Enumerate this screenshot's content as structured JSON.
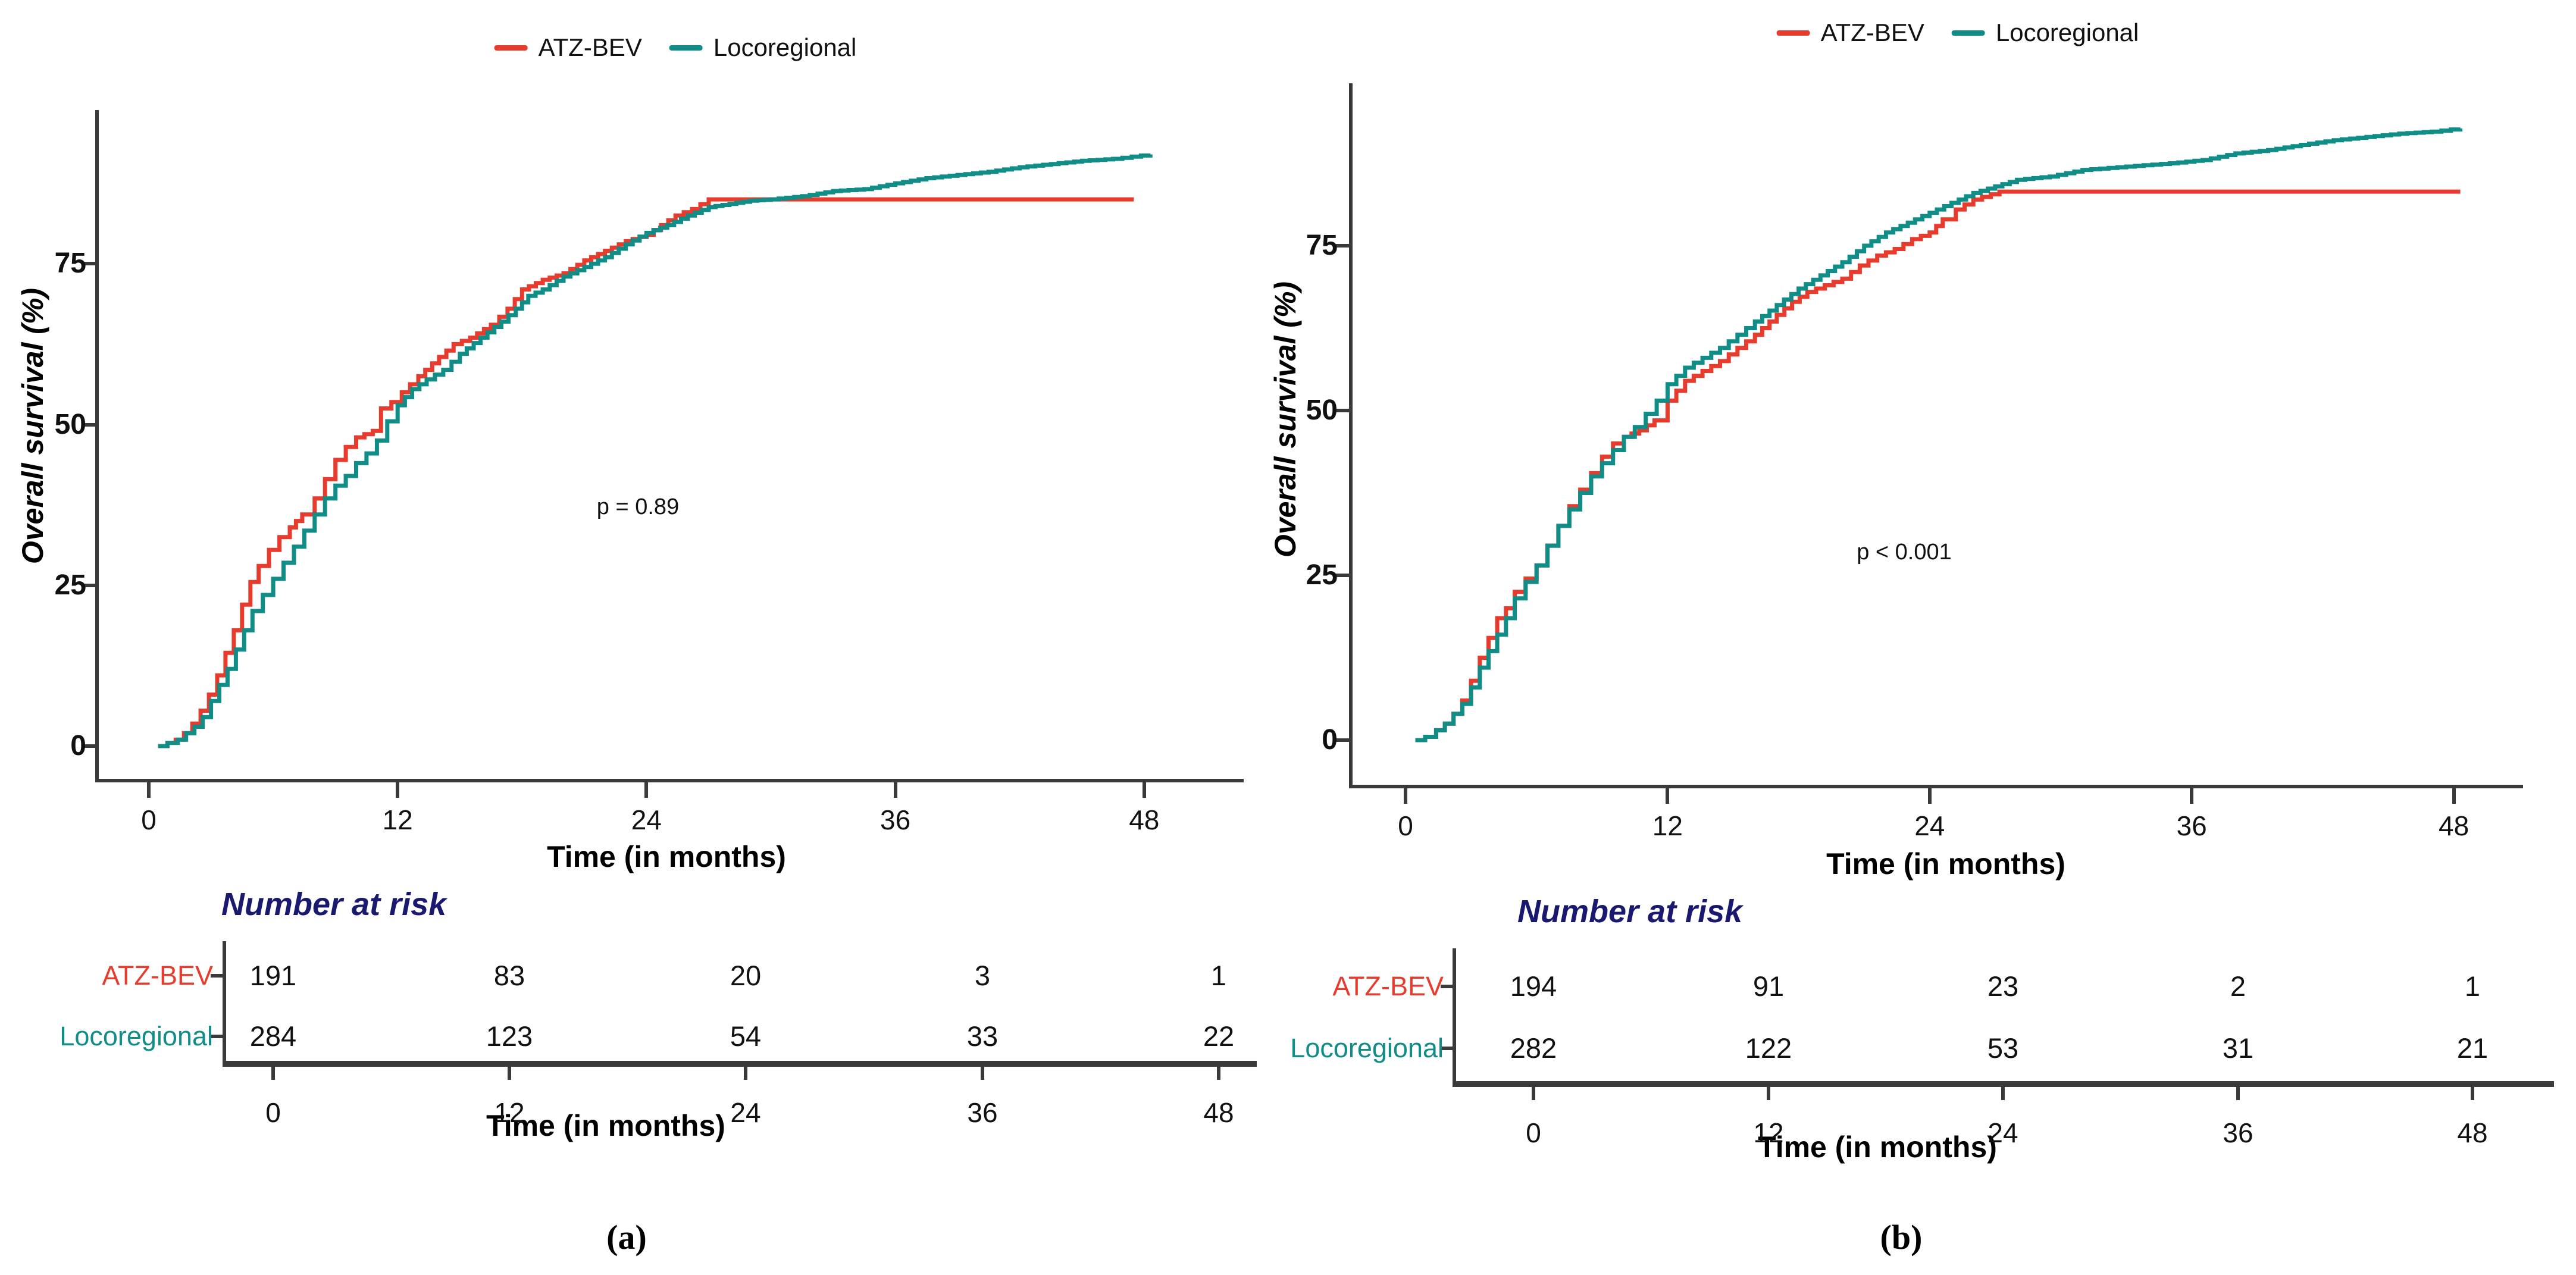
{
  "figure": {
    "panels": [
      {
        "caption": "(a)",
        "legend": [
          {
            "label": "ATZ-BEV",
            "color": "#e73b2e"
          },
          {
            "label": "Locoregional",
            "color": "#108d87"
          }
        ],
        "y_axis": {
          "label": "Overall survival (%)",
          "ticks": [
            "0",
            "25",
            "50",
            "75"
          ]
        },
        "x_axis": {
          "label": "Time (in months)",
          "ticks": [
            "0",
            "12",
            "24",
            "36",
            "48"
          ]
        },
        "p_value": "p = 0.89",
        "risk_table": {
          "title": "Number at risk",
          "title_color": "#191970",
          "x_label": "Time (in months)",
          "time_ticks": [
            "0",
            "12",
            "24",
            "36",
            "48"
          ],
          "rows": [
            {
              "label": "ATZ-BEV",
              "color": "#e73b2e",
              "counts": [
                "191",
                "83",
                "20",
                "3",
                "1"
              ]
            },
            {
              "label": "Locoregional",
              "color": "#108d87",
              "counts": [
                "284",
                "123",
                "54",
                "33",
                "22"
              ]
            }
          ]
        }
      },
      {
        "caption": "(b)",
        "legend": [
          {
            "label": "ATZ-BEV",
            "color": "#e73b2e"
          },
          {
            "label": "Locoregional",
            "color": "#108d87"
          }
        ],
        "y_axis": {
          "label": "Overall survival (%)",
          "ticks": [
            "0",
            "25",
            "50",
            "75"
          ]
        },
        "x_axis": {
          "label": "Time (in months)",
          "ticks": [
            "0",
            "12",
            "24",
            "36",
            "48"
          ]
        },
        "p_value": "p < 0.001",
        "risk_table": {
          "title": "Number at risk",
          "title_color": "#191970",
          "x_label": "Time (in months)",
          "time_ticks": [
            "0",
            "12",
            "24",
            "36",
            "48"
          ],
          "rows": [
            {
              "label": "ATZ-BEV",
              "color": "#e73b2e",
              "counts": [
                "194",
                "91",
                "23",
                "2",
                "1"
              ]
            },
            {
              "label": "Locoregional",
              "color": "#108d87",
              "counts": [
                "282",
                "122",
                "53",
                "31",
                "21"
              ]
            }
          ]
        }
      }
    ]
  },
  "chart_data": [
    {
      "type": "line",
      "panel": "a",
      "step": true,
      "xlabel": "Time (in months)",
      "ylabel": "Overall survival (%)",
      "xlim": [
        0,
        50
      ],
      "ylim": [
        0,
        100
      ],
      "x_ticks": [
        0,
        12,
        24,
        36,
        48
      ],
      "y_ticks": [
        0,
        25,
        50,
        75
      ],
      "grid": false,
      "legend_position": "top-center",
      "annotation": {
        "text": "p = 0.89",
        "x": 23.6,
        "y": 37
      },
      "number_at_risk": {
        "times": [
          0,
          12,
          24,
          36,
          48
        ],
        "ATZ-BEV": [
          191,
          83,
          20,
          3,
          1
        ],
        "Locoregional": [
          284,
          123,
          54,
          33,
          22
        ]
      },
      "series": [
        {
          "name": "ATZ-BEV",
          "color": "#e73b2e",
          "points": [
            [
              0.45,
              0
            ],
            [
              0.9,
              0.5
            ],
            [
              1.3,
              1
            ],
            [
              1.7,
              2
            ],
            [
              2.1,
              3.5
            ],
            [
              2.5,
              5.5
            ],
            [
              2.9,
              8
            ],
            [
              3.3,
              11
            ],
            [
              3.7,
              14.5
            ],
            [
              4.1,
              18
            ],
            [
              4.5,
              22
            ],
            [
              4.9,
              25.5
            ],
            [
              5.3,
              28
            ],
            [
              5.8,
              30.5
            ],
            [
              6.3,
              32.5
            ],
            [
              6.8,
              34
            ],
            [
              7.4,
              36
            ],
            [
              8,
              38.5
            ],
            [
              8.5,
              41.5
            ],
            [
              9,
              44.5
            ],
            [
              9.5,
              46.5
            ],
            [
              10,
              48
            ],
            [
              10.8,
              49
            ],
            [
              11.2,
              52.5
            ],
            [
              11.7,
              53.5
            ],
            [
              12.2,
              55
            ],
            [
              13,
              57.5
            ],
            [
              14,
              60.5
            ],
            [
              14.7,
              62.5
            ],
            [
              15.5,
              63.5
            ],
            [
              16.5,
              65.5
            ],
            [
              17.3,
              68
            ],
            [
              18,
              71
            ],
            [
              19,
              72.5
            ],
            [
              20,
              73.5
            ],
            [
              21,
              75.5
            ],
            [
              22,
              77
            ],
            [
              23,
              78.5
            ],
            [
              24,
              79.5
            ],
            [
              24.7,
              81
            ],
            [
              25.4,
              82.5
            ],
            [
              26.2,
              83.5
            ],
            [
              27,
              85
            ],
            [
              47.5,
              85
            ]
          ]
        },
        {
          "name": "Locoregional",
          "color": "#108d87",
          "points": [
            [
              0.45,
              0
            ],
            [
              0.9,
              0.5
            ],
            [
              1.4,
              1
            ],
            [
              1.8,
              2
            ],
            [
              2.2,
              3
            ],
            [
              2.6,
              4.5
            ],
            [
              3,
              7
            ],
            [
              3.4,
              9.5
            ],
            [
              3.8,
              12
            ],
            [
              4.2,
              15
            ],
            [
              4.6,
              18
            ],
            [
              5,
              21
            ],
            [
              5.5,
              23.5
            ],
            [
              6,
              26
            ],
            [
              6.5,
              28.5
            ],
            [
              7,
              31
            ],
            [
              7.5,
              33.5
            ],
            [
              8,
              36
            ],
            [
              8.5,
              38.5
            ],
            [
              9,
              40.5
            ],
            [
              9.5,
              42
            ],
            [
              10,
              44
            ],
            [
              10.5,
              45.5
            ],
            [
              11,
              47.5
            ],
            [
              11.5,
              50.5
            ],
            [
              12,
              53
            ],
            [
              12.7,
              55.5
            ],
            [
              13.4,
              57
            ],
            [
              14.2,
              58.5
            ],
            [
              15,
              61
            ],
            [
              16,
              63.5
            ],
            [
              17,
              66
            ],
            [
              17.7,
              68
            ],
            [
              18.3,
              70
            ],
            [
              19,
              71
            ],
            [
              20,
              73
            ],
            [
              21,
              74.5
            ],
            [
              22,
              76
            ],
            [
              23,
              78
            ],
            [
              24,
              79.8
            ],
            [
              25,
              81
            ],
            [
              26,
              82.5
            ],
            [
              27,
              83.8
            ],
            [
              28,
              84.3
            ],
            [
              29,
              84.8
            ],
            [
              30,
              85
            ],
            [
              31.5,
              85.5
            ],
            [
              33,
              86.3
            ],
            [
              34.5,
              86.6
            ],
            [
              36,
              87.5
            ],
            [
              37.5,
              88.3
            ],
            [
              39,
              88.8
            ],
            [
              40.5,
              89.3
            ],
            [
              42,
              90
            ],
            [
              43.5,
              90.5
            ],
            [
              45,
              91
            ],
            [
              46.5,
              91.3
            ],
            [
              48.3,
              92
            ]
          ]
        }
      ]
    },
    {
      "type": "line",
      "panel": "b",
      "step": true,
      "xlabel": "Time (in months)",
      "ylabel": "Overall survival (%)",
      "xlim": [
        0,
        50
      ],
      "ylim": [
        0,
        100
      ],
      "x_ticks": [
        0,
        12,
        24,
        36,
        48
      ],
      "y_ticks": [
        0,
        25,
        50,
        75
      ],
      "grid": false,
      "legend_position": "top-center",
      "annotation": {
        "text": "p < 0.001",
        "x": 22.8,
        "y": 28.5
      },
      "number_at_risk": {
        "times": [
          0,
          12,
          24,
          36,
          48
        ],
        "ATZ-BEV": [
          194,
          91,
          23,
          2,
          1
        ],
        "Locoregional": [
          282,
          122,
          53,
          31,
          21
        ]
      },
      "series": [
        {
          "name": "ATZ-BEV",
          "color": "#e73b2e",
          "points": [
            [
              0.45,
              0
            ],
            [
              0.9,
              0.5
            ],
            [
              1.4,
              1.5
            ],
            [
              1.8,
              2.5
            ],
            [
              2.2,
              4
            ],
            [
              2.6,
              6
            ],
            [
              3,
              9
            ],
            [
              3.4,
              12.5
            ],
            [
              3.8,
              15.5
            ],
            [
              4.2,
              18.5
            ],
            [
              4.6,
              20
            ],
            [
              5,
              22.5
            ],
            [
              5.5,
              24.5
            ],
            [
              6,
              26.5
            ],
            [
              6.5,
              29.5
            ],
            [
              7,
              32.5
            ],
            [
              7.5,
              35.5
            ],
            [
              8,
              38
            ],
            [
              8.5,
              40.5
            ],
            [
              9,
              43
            ],
            [
              9.5,
              45
            ],
            [
              10,
              46
            ],
            [
              10.7,
              47
            ],
            [
              11.4,
              48.5
            ],
            [
              12,
              51.5
            ],
            [
              12.8,
              54.5
            ],
            [
              13.6,
              56
            ],
            [
              14.4,
              57.5
            ],
            [
              15.2,
              59.5
            ],
            [
              16,
              61.5
            ],
            [
              17,
              64.5
            ],
            [
              17.7,
              66.5
            ],
            [
              18.4,
              68
            ],
            [
              19.2,
              69
            ],
            [
              20,
              70
            ],
            [
              20.8,
              72
            ],
            [
              21.6,
              73.5
            ],
            [
              22.4,
              74.5
            ],
            [
              23.2,
              76
            ],
            [
              24,
              77
            ],
            [
              24.6,
              79
            ],
            [
              25.2,
              80.5
            ],
            [
              26,
              82
            ],
            [
              27.2,
              83.2
            ],
            [
              48.3,
              83.2
            ]
          ]
        },
        {
          "name": "Locoregional",
          "color": "#108d87",
          "points": [
            [
              0.45,
              0
            ],
            [
              0.9,
              0.5
            ],
            [
              1.4,
              1.5
            ],
            [
              1.8,
              2.5
            ],
            [
              2.2,
              4
            ],
            [
              2.6,
              5.5
            ],
            [
              3,
              8
            ],
            [
              3.4,
              11
            ],
            [
              3.8,
              13.5
            ],
            [
              4.2,
              16
            ],
            [
              4.6,
              18.5
            ],
            [
              5,
              21.5
            ],
            [
              5.5,
              24
            ],
            [
              6,
              26.5
            ],
            [
              6.5,
              29.5
            ],
            [
              7,
              32.5
            ],
            [
              7.5,
              35
            ],
            [
              8,
              37.5
            ],
            [
              8.5,
              40
            ],
            [
              9,
              42
            ],
            [
              9.5,
              44
            ],
            [
              10,
              46
            ],
            [
              10.5,
              47.5
            ],
            [
              11,
              49.5
            ],
            [
              11.5,
              51.5
            ],
            [
              12,
              54
            ],
            [
              12.8,
              56.5
            ],
            [
              13.6,
              58
            ],
            [
              14.4,
              59.5
            ],
            [
              15.2,
              61.5
            ],
            [
              16,
              63.5
            ],
            [
              17,
              66
            ],
            [
              18,
              68.5
            ],
            [
              19,
              70.5
            ],
            [
              20,
              72.5
            ],
            [
              21,
              75
            ],
            [
              22,
              77
            ],
            [
              23,
              78.5
            ],
            [
              24,
              80
            ],
            [
              25,
              81.5
            ],
            [
              26,
              83
            ],
            [
              27,
              84
            ],
            [
              28,
              85
            ],
            [
              29.5,
              85.5
            ],
            [
              31,
              86.5
            ],
            [
              33,
              87
            ],
            [
              35,
              87.5
            ],
            [
              36.5,
              88
            ],
            [
              38,
              89
            ],
            [
              39.5,
              89.5
            ],
            [
              41,
              90.3
            ],
            [
              42.5,
              91
            ],
            [
              44,
              91.5
            ],
            [
              45.5,
              92
            ],
            [
              47,
              92.3
            ],
            [
              48.3,
              92.8
            ]
          ]
        }
      ]
    }
  ]
}
